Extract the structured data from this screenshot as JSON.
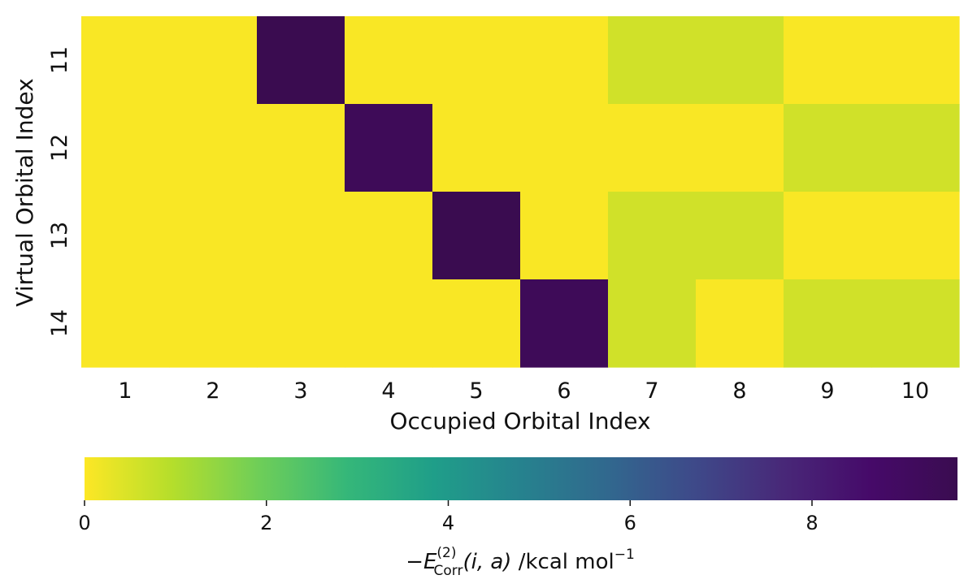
{
  "chart_data": {
    "type": "heatmap",
    "xlabel": "Occupied Orbital Index",
    "ylabel": "Virtual Orbital Index",
    "x_categories": [
      "1",
      "2",
      "3",
      "4",
      "5",
      "6",
      "7",
      "8",
      "9",
      "10"
    ],
    "y_categories": [
      "11",
      "12",
      "13",
      "14"
    ],
    "values": [
      [
        0.05,
        0.05,
        9.6,
        0.05,
        0.05,
        0.05,
        0.6,
        0.6,
        0.05,
        0.05
      ],
      [
        0.05,
        0.05,
        0.05,
        9.3,
        0.05,
        0.05,
        0.05,
        0.05,
        0.6,
        0.6
      ],
      [
        0.05,
        0.05,
        0.05,
        0.05,
        9.8,
        0.05,
        0.6,
        0.6,
        0.05,
        0.05
      ],
      [
        0.05,
        0.05,
        0.05,
        0.05,
        0.05,
        9.3,
        0.6,
        0.05,
        0.6,
        0.6
      ]
    ],
    "colormap": "viridis_r",
    "vmin": 0,
    "vmax": 9.6,
    "colorbar": {
      "orientation": "horizontal",
      "placement": "bottom",
      "ticks": [
        0,
        2,
        4,
        6,
        8
      ],
      "tick_labels": [
        "0",
        "2",
        "4",
        "6",
        "8"
      ],
      "label_prefix": "−E",
      "label_superscript": "(2)",
      "label_subscript": "Corr",
      "label_args": "(i, a)",
      "label_units": " /kcal mol",
      "label_units_superscript": "−1"
    },
    "grid": false
  }
}
